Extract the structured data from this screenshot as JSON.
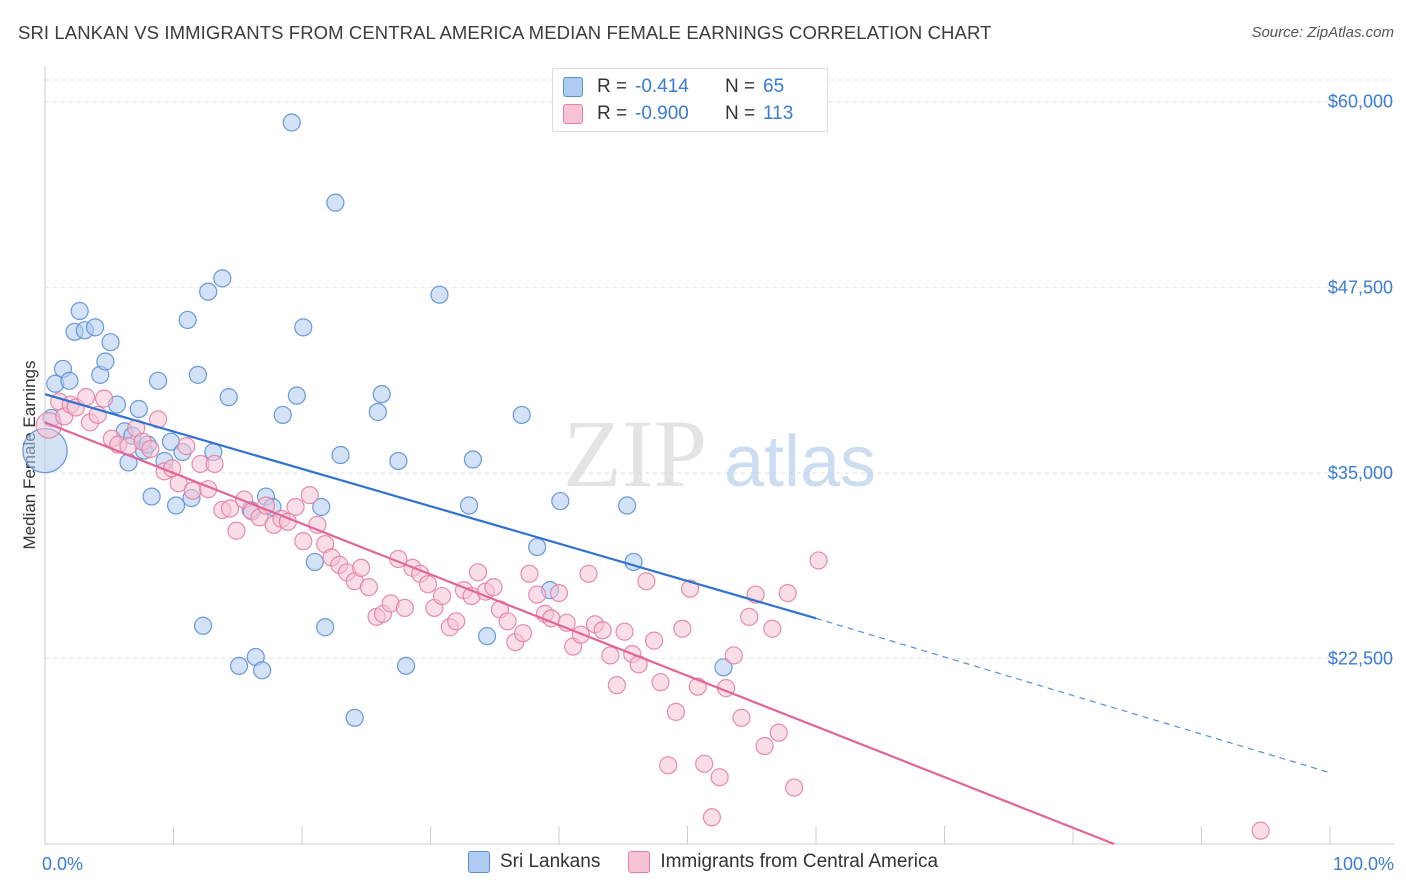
{
  "header": {
    "title": "SRI LANKAN VS IMMIGRANTS FROM CENTRAL AMERICA MEDIAN FEMALE EARNINGS CORRELATION CHART",
    "source": "Source: ZipAtlas.com"
  },
  "watermark": {
    "zip": "ZIP",
    "atlas": "atlas"
  },
  "legend_stats": [
    {
      "r_label": "R =",
      "r_value": "-0.414",
      "n_label": "N =",
      "n_value": "65",
      "color": "#5b8fd6",
      "fill": "#aecbf1"
    },
    {
      "r_label": "R =",
      "r_value": "-0.900",
      "n_label": "N =",
      "n_value": "113",
      "color": "#e67fa2",
      "fill": "#f6c3d4"
    }
  ],
  "chart_data": {
    "type": "scatter",
    "ylabel": "Median Female Earnings",
    "xlim": [
      0,
      100
    ],
    "ylim": [
      10000,
      62000
    ],
    "x_tick_labels": [
      "0.0%",
      "100.0%"
    ],
    "y_ticks": [
      {
        "value": 60000,
        "label": "$60,000"
      },
      {
        "value": 47500,
        "label": "$47,500"
      },
      {
        "value": 35000,
        "label": "$35,000"
      },
      {
        "value": 22500,
        "label": "$22,500"
      }
    ],
    "grid": true,
    "legend_position": "bottom",
    "series": [
      {
        "name": "Sri Lankans",
        "color": "#5b8fd6",
        "fill": "#aecbf1",
        "trend": {
          "x0": 0,
          "y0": 40300,
          "x1": 60,
          "y1": 25200,
          "dashed_to_x": 100,
          "dashed_to_y": 14800
        },
        "points": [
          [
            0,
            36500,
            2.6
          ],
          [
            0.5,
            38700,
            1
          ],
          [
            0.8,
            41000,
            1
          ],
          [
            1.4,
            42000,
            1
          ],
          [
            1.9,
            41200,
            1
          ],
          [
            2.3,
            44500,
            1
          ],
          [
            2.7,
            45900,
            1
          ],
          [
            3.1,
            44600,
            1
          ],
          [
            3.9,
            44800,
            1
          ],
          [
            4.3,
            41600,
            1
          ],
          [
            4.7,
            42500,
            1
          ],
          [
            5.1,
            43800,
            1
          ],
          [
            5.6,
            39600,
            1
          ],
          [
            6.2,
            37800,
            1
          ],
          [
            6.5,
            35700,
            1
          ],
          [
            6.8,
            37500,
            1
          ],
          [
            7.3,
            39300,
            1
          ],
          [
            7.7,
            36500,
            1
          ],
          [
            8,
            36900,
            1
          ],
          [
            8.3,
            33400,
            1
          ],
          [
            8.8,
            41200,
            1
          ],
          [
            9.3,
            35800,
            1
          ],
          [
            9.8,
            37100,
            1
          ],
          [
            10.2,
            32800,
            1
          ],
          [
            10.7,
            36400,
            1
          ],
          [
            11.1,
            45300,
            1
          ],
          [
            11.4,
            33300,
            1
          ],
          [
            11.9,
            41600,
            1
          ],
          [
            12.3,
            24700,
            1
          ],
          [
            12.7,
            47200,
            1
          ],
          [
            13.1,
            36400,
            1
          ],
          [
            13.8,
            48100,
            1
          ],
          [
            14.3,
            40100,
            1
          ],
          [
            15.1,
            22000,
            1
          ],
          [
            16.0,
            32500,
            1
          ],
          [
            16.4,
            22600,
            1
          ],
          [
            16.9,
            21700,
            1
          ],
          [
            17.2,
            33400,
            1
          ],
          [
            17.7,
            32700,
            1
          ],
          [
            18.5,
            38900,
            1
          ],
          [
            19.2,
            58600,
            1
          ],
          [
            19.6,
            40200,
            1
          ],
          [
            20.1,
            44800,
            1
          ],
          [
            21,
            29000,
            1
          ],
          [
            21.5,
            32700,
            1
          ],
          [
            21.8,
            24600,
            1
          ],
          [
            22.6,
            53200,
            1
          ],
          [
            23,
            36200,
            1
          ],
          [
            24.1,
            18500,
            1
          ],
          [
            26.2,
            40300,
            1
          ],
          [
            25.9,
            39100,
            1
          ],
          [
            27.5,
            35800,
            1
          ],
          [
            28.1,
            22000,
            1
          ],
          [
            30.7,
            47000,
            1
          ],
          [
            33,
            32800,
            1
          ],
          [
            33.3,
            35900,
            1
          ],
          [
            34.4,
            24000,
            1
          ],
          [
            37.1,
            38900,
            1
          ],
          [
            38.3,
            30000,
            1
          ],
          [
            39.3,
            27100,
            1
          ],
          [
            40.1,
            33100,
            1
          ],
          [
            45.3,
            32800,
            1
          ],
          [
            45.8,
            29000,
            1
          ],
          [
            52.8,
            21900,
            1
          ]
        ]
      },
      {
        "name": "Immigrants from Central America",
        "color": "#e67fa2",
        "fill": "#f6c3d4",
        "trend": {
          "x0": 0,
          "y0": 38400,
          "x1": 83.2,
          "y1": 10000
        },
        "points": [
          [
            0.3,
            38200,
            1.5
          ],
          [
            1.1,
            39800,
            1
          ],
          [
            1.5,
            38800,
            1
          ],
          [
            2,
            39600,
            1
          ],
          [
            2.4,
            39400,
            1
          ],
          [
            3.2,
            40100,
            1
          ],
          [
            3.5,
            38400,
            1
          ],
          [
            4.1,
            38900,
            1
          ],
          [
            4.6,
            40000,
            1
          ],
          [
            5.2,
            37300,
            1
          ],
          [
            5.7,
            36900,
            1
          ],
          [
            6.5,
            36800,
            1
          ],
          [
            7.1,
            38000,
            1
          ],
          [
            7.6,
            37100,
            1
          ],
          [
            8.2,
            36600,
            1
          ],
          [
            8.8,
            38600,
            1
          ],
          [
            9.3,
            35100,
            1
          ],
          [
            9.9,
            35300,
            1
          ],
          [
            10.4,
            34300,
            1
          ],
          [
            11,
            36800,
            1
          ],
          [
            11.5,
            33800,
            1
          ],
          [
            12.1,
            35600,
            1
          ],
          [
            12.7,
            33900,
            1
          ],
          [
            13.2,
            35600,
            1
          ],
          [
            13.8,
            32500,
            1
          ],
          [
            14.4,
            32600,
            1
          ],
          [
            14.9,
            31100,
            1
          ],
          [
            15.5,
            33200,
            1
          ],
          [
            16.1,
            32400,
            1
          ],
          [
            16.7,
            32000,
            1
          ],
          [
            17.2,
            32800,
            1
          ],
          [
            17.8,
            31500,
            1
          ],
          [
            18.4,
            31900,
            1
          ],
          [
            18.9,
            31700,
            1
          ],
          [
            19.5,
            32700,
            1
          ],
          [
            20.1,
            30400,
            1
          ],
          [
            20.6,
            33500,
            1
          ],
          [
            21.2,
            31500,
            1
          ],
          [
            21.8,
            30200,
            1
          ],
          [
            22.3,
            29300,
            1
          ],
          [
            22.9,
            28800,
            1
          ],
          [
            23.5,
            28300,
            1
          ],
          [
            24.1,
            27700,
            1
          ],
          [
            24.6,
            28600,
            1
          ],
          [
            25.2,
            27300,
            1
          ],
          [
            25.8,
            25300,
            1
          ],
          [
            26.3,
            25500,
            1
          ],
          [
            26.9,
            26200,
            1
          ],
          [
            27.5,
            29200,
            1
          ],
          [
            28,
            25900,
            1
          ],
          [
            28.6,
            28600,
            1
          ],
          [
            29.2,
            28200,
            1
          ],
          [
            29.8,
            27500,
            1
          ],
          [
            30.3,
            25900,
            1
          ],
          [
            30.9,
            26700,
            1
          ],
          [
            31.5,
            24600,
            1
          ],
          [
            32,
            25000,
            1
          ],
          [
            32.6,
            27100,
            1
          ],
          [
            33.2,
            26700,
            1
          ],
          [
            33.7,
            28300,
            1
          ],
          [
            34.3,
            27000,
            1
          ],
          [
            34.9,
            27300,
            1
          ],
          [
            35.4,
            25800,
            1
          ],
          [
            36,
            25000,
            1
          ],
          [
            36.6,
            23600,
            1
          ],
          [
            37.2,
            24200,
            1
          ],
          [
            37.7,
            28200,
            1
          ],
          [
            38.3,
            26800,
            1
          ],
          [
            38.9,
            25500,
            1
          ],
          [
            39.4,
            25200,
            1
          ],
          [
            40,
            26900,
            1
          ],
          [
            40.6,
            24900,
            1
          ],
          [
            41.1,
            23300,
            1
          ],
          [
            41.7,
            24100,
            1
          ],
          [
            42.3,
            28200,
            1
          ],
          [
            42.8,
            24800,
            1
          ],
          [
            43.4,
            24400,
            1
          ],
          [
            44,
            22700,
            1
          ],
          [
            44.5,
            20700,
            1
          ],
          [
            45.1,
            24300,
            1
          ],
          [
            45.7,
            22800,
            1
          ],
          [
            46.2,
            22100,
            1
          ],
          [
            46.8,
            27700,
            1
          ],
          [
            47.4,
            23700,
            1
          ],
          [
            47.9,
            20900,
            1
          ],
          [
            48.5,
            15300,
            1
          ],
          [
            49.1,
            18900,
            1
          ],
          [
            49.6,
            24500,
            1
          ],
          [
            50.2,
            27200,
            1
          ],
          [
            50.8,
            20600,
            1
          ],
          [
            51.3,
            15400,
            1
          ],
          [
            51.9,
            11800,
            1
          ],
          [
            52.5,
            14500,
            1
          ],
          [
            53,
            20500,
            1
          ],
          [
            53.6,
            22700,
            1
          ],
          [
            54.2,
            18500,
            1
          ],
          [
            54.8,
            25300,
            1
          ],
          [
            55.3,
            26800,
            1
          ],
          [
            56,
            16600,
            1
          ],
          [
            56.6,
            24500,
            1
          ],
          [
            57.1,
            17500,
            1
          ],
          [
            57.8,
            26900,
            1
          ],
          [
            58.3,
            13800,
            1
          ],
          [
            60.2,
            29100,
            1
          ],
          [
            94.6,
            10900,
            1
          ]
        ]
      }
    ]
  }
}
